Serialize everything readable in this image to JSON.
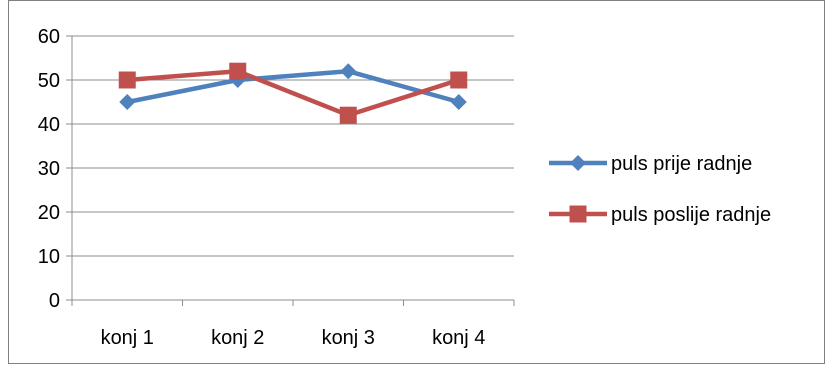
{
  "chart_data": {
    "type": "line",
    "categories": [
      "konj 1",
      "konj 2",
      "konj 3",
      "konj 4"
    ],
    "series": [
      {
        "name": "puls prije radnje",
        "values": [
          45,
          50,
          52,
          45
        ],
        "color": "#4F81BD",
        "marker": "diamond"
      },
      {
        "name": "puls poslije radnje",
        "values": [
          50,
          52,
          42,
          50
        ],
        "color": "#C0504D",
        "marker": "square"
      }
    ],
    "ylim": [
      0,
      60
    ],
    "yticks": [
      0,
      10,
      20,
      30,
      40,
      50,
      60
    ],
    "grid": true,
    "legend_position": "right",
    "title": "",
    "xlabel": "",
    "ylabel": ""
  }
}
